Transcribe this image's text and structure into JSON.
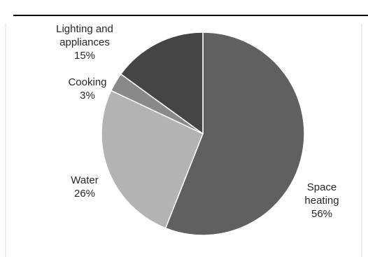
{
  "chart_data": {
    "type": "pie",
    "title": "",
    "slices": [
      {
        "label_lines": [
          "Space",
          "heating"
        ],
        "percent_label": "56%",
        "value": 56,
        "color": "#606060"
      },
      {
        "label_lines": [
          "Water"
        ],
        "percent_label": "26%",
        "value": 26,
        "color": "#b3b3b3"
      },
      {
        "label_lines": [
          "Cooking"
        ],
        "percent_label": "3%",
        "value": 3,
        "color": "#898989"
      },
      {
        "label_lines": [
          "Lighting and",
          "appliances"
        ],
        "percent_label": "15%",
        "value": 15,
        "color": "#454545"
      }
    ]
  }
}
